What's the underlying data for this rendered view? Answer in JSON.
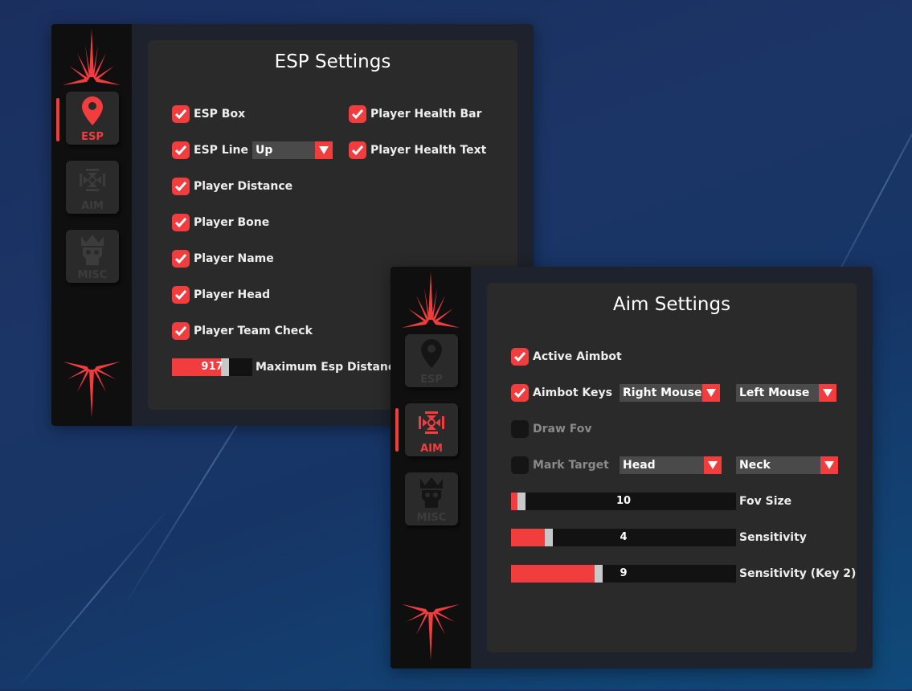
{
  "colors": {
    "accent": "#f23d3f",
    "panel": "#2a2a2a",
    "sidebar": "#0f0f10"
  },
  "nav": {
    "esp": "ESP",
    "aim": "AIM",
    "misc": "MISC"
  },
  "esp": {
    "title": "ESP Settings",
    "checks": [
      {
        "label": "ESP Box",
        "checked": true
      },
      {
        "label": "ESP Line",
        "checked": true
      },
      {
        "label": "Player Distance",
        "checked": true
      },
      {
        "label": "Player Bone",
        "checked": true
      },
      {
        "label": "Player Name",
        "checked": true
      },
      {
        "label": "Player Head",
        "checked": true
      },
      {
        "label": "Player Team Check",
        "checked": true
      },
      {
        "label": "Player Health Bar",
        "checked": true
      },
      {
        "label": "Player Health Text",
        "checked": true
      }
    ],
    "line_dropdown": "Up",
    "slider": {
      "value": "917",
      "label": "Maximum Esp Distance",
      "fill_percent": 61
    }
  },
  "aim": {
    "title": "Aim Settings",
    "checks": [
      {
        "label": "Active Aimbot",
        "checked": true
      },
      {
        "label": "Aimbot Keys",
        "checked": true
      },
      {
        "label": "Draw Fov",
        "checked": false
      },
      {
        "label": "Mark Target",
        "checked": false
      }
    ],
    "key1": "Right Mouse",
    "key2": "Left Mouse",
    "target1": "Head",
    "target2": "Neck",
    "sliders": [
      {
        "value": "10",
        "label": "Fov Size",
        "fill_percent": 3
      },
      {
        "value": "4",
        "label": "Sensitivity",
        "fill_percent": 15
      },
      {
        "value": "9",
        "label": "Sensitivity (Key 2)",
        "fill_percent": 37
      }
    ]
  }
}
